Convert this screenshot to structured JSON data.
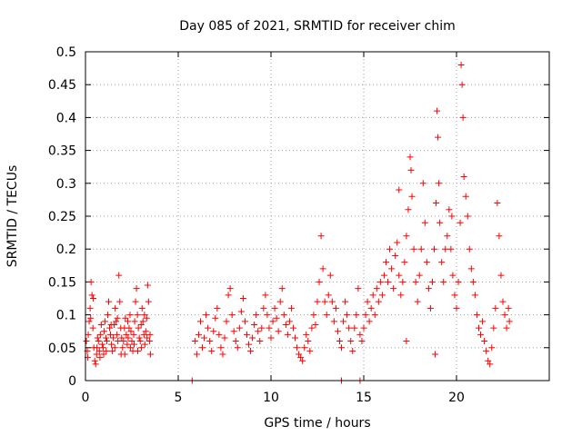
{
  "chart_data": {
    "type": "scatter",
    "title": "Day 085 of 2021, SRMTID for receiver chim",
    "xlabel": "GPS time / hours",
    "ylabel": "SRMTID / TECUs",
    "xlim": [
      0,
      25
    ],
    "ylim": [
      0,
      0.5
    ],
    "x_ticks": [
      0,
      5,
      10,
      15,
      20
    ],
    "x_tick_labels": [
      "0",
      "5",
      "10",
      "15",
      "20"
    ],
    "y_ticks": [
      0,
      0.05,
      0.1,
      0.15,
      0.2,
      0.25,
      0.3,
      0.35,
      0.4,
      0.45,
      0.5
    ],
    "y_tick_labels": [
      "0",
      "0.05",
      "0.1",
      "0.15",
      "0.2",
      "0.25",
      "0.3",
      "0.35",
      "0.4",
      "0.45",
      "0.5"
    ],
    "grid": true,
    "marker": "+",
    "series": [
      {
        "name": "SRMTID",
        "color": "#ff0000",
        "points": [
          [
            0.05,
            0.06
          ],
          [
            0.1,
            0.045
          ],
          [
            0.15,
            0.07
          ],
          [
            0.2,
            0.09
          ],
          [
            0.25,
            0.11
          ],
          [
            0.3,
            0.15
          ],
          [
            0.35,
            0.13
          ],
          [
            0.4,
            0.08
          ],
          [
            0.45,
            0.05
          ],
          [
            0.5,
            0.03
          ],
          [
            0.55,
            0.025
          ],
          [
            0.6,
            0.04
          ],
          [
            0.65,
            0.065
          ],
          [
            0.7,
            0.06
          ],
          [
            0.75,
            0.045
          ],
          [
            0.8,
            0.07
          ],
          [
            0.85,
            0.085
          ],
          [
            0.9,
            0.055
          ],
          [
            0.95,
            0.05
          ],
          [
            1.0,
            0.075
          ],
          [
            1.05,
            0.09
          ],
          [
            1.1,
            0.065
          ],
          [
            1.15,
            0.06
          ],
          [
            1.2,
            0.1
          ],
          [
            1.25,
            0.12
          ],
          [
            1.3,
            0.08
          ],
          [
            1.35,
            0.07
          ],
          [
            1.4,
            0.055
          ],
          [
            1.45,
            0.045
          ],
          [
            1.5,
            0.065
          ],
          [
            1.55,
            0.085
          ],
          [
            1.6,
            0.11
          ],
          [
            1.65,
            0.09
          ],
          [
            1.7,
            0.07
          ],
          [
            1.75,
            0.06
          ],
          [
            1.8,
            0.16
          ],
          [
            1.85,
            0.12
          ],
          [
            1.9,
            0.08
          ],
          [
            1.95,
            0.065
          ],
          [
            2.0,
            0.05
          ],
          [
            2.05,
            0.06
          ],
          [
            2.1,
            0.08
          ],
          [
            2.15,
            0.095
          ],
          [
            2.2,
            0.07
          ],
          [
            2.25,
            0.055
          ],
          [
            2.3,
            0.065
          ],
          [
            2.35,
            0.08
          ],
          [
            2.4,
            0.1
          ],
          [
            2.45,
            0.075
          ],
          [
            2.5,
            0.06
          ],
          [
            2.55,
            0.045
          ],
          [
            2.6,
            0.07
          ],
          [
            2.65,
            0.09
          ],
          [
            2.7,
            0.12
          ],
          [
            2.75,
            0.14
          ],
          [
            2.8,
            0.1
          ],
          [
            2.85,
            0.08
          ],
          [
            2.9,
            0.065
          ],
          [
            2.95,
            0.06
          ],
          [
            3.0,
            0.085
          ],
          [
            3.05,
            0.11
          ],
          [
            3.1,
            0.09
          ],
          [
            3.15,
            0.07
          ],
          [
            3.2,
            0.055
          ],
          [
            3.25,
            0.075
          ],
          [
            3.3,
            0.095
          ],
          [
            3.35,
            0.145
          ],
          [
            3.4,
            0.12
          ],
          [
            3.45,
            0.06
          ],
          [
            3.5,
            0.04
          ],
          [
            0.12,
            0.035
          ],
          [
            0.28,
            0.095
          ],
          [
            0.42,
            0.125
          ],
          [
            0.62,
            0.05
          ],
          [
            0.78,
            0.035
          ],
          [
            0.98,
            0.04
          ],
          [
            1.12,
            0.045
          ],
          [
            1.38,
            0.085
          ],
          [
            1.58,
            0.05
          ],
          [
            1.72,
            0.095
          ],
          [
            1.92,
            0.04
          ],
          [
            2.12,
            0.04
          ],
          [
            2.28,
            0.09
          ],
          [
            2.42,
            0.05
          ],
          [
            2.62,
            0.055
          ],
          [
            2.82,
            0.045
          ],
          [
            3.02,
            0.05
          ],
          [
            3.18,
            0.1
          ],
          [
            3.32,
            0.065
          ],
          [
            3.48,
            0.07
          ],
          [
            5.75,
            0.0
          ],
          [
            13.8,
            0.0
          ],
          [
            14.8,
            0.0
          ],
          [
            5.9,
            0.06
          ],
          [
            6.0,
            0.04
          ],
          [
            6.1,
            0.07
          ],
          [
            6.2,
            0.09
          ],
          [
            6.3,
            0.05
          ],
          [
            6.4,
            0.065
          ],
          [
            6.5,
            0.1
          ],
          [
            6.6,
            0.08
          ],
          [
            6.7,
            0.06
          ],
          [
            6.8,
            0.045
          ],
          [
            6.9,
            0.075
          ],
          [
            7.0,
            0.095
          ],
          [
            7.1,
            0.11
          ],
          [
            7.2,
            0.07
          ],
          [
            7.3,
            0.05
          ],
          [
            7.4,
            0.04
          ],
          [
            7.5,
            0.065
          ],
          [
            7.6,
            0.09
          ],
          [
            7.7,
            0.13
          ],
          [
            7.8,
            0.14
          ],
          [
            7.9,
            0.1
          ],
          [
            8.0,
            0.075
          ],
          [
            8.1,
            0.06
          ],
          [
            8.2,
            0.05
          ],
          [
            8.3,
            0.08
          ],
          [
            8.4,
            0.105
          ],
          [
            8.5,
            0.125
          ],
          [
            8.6,
            0.09
          ],
          [
            8.7,
            0.07
          ],
          [
            8.8,
            0.055
          ],
          [
            8.9,
            0.045
          ],
          [
            9.0,
            0.065
          ],
          [
            9.1,
            0.085
          ],
          [
            9.2,
            0.1
          ],
          [
            9.3,
            0.075
          ],
          [
            9.4,
            0.06
          ],
          [
            9.5,
            0.08
          ],
          [
            9.6,
            0.11
          ],
          [
            9.7,
            0.13
          ],
          [
            9.8,
            0.1
          ],
          [
            9.9,
            0.08
          ],
          [
            10.0,
            0.065
          ],
          [
            10.1,
            0.09
          ],
          [
            10.2,
            0.11
          ],
          [
            10.3,
            0.095
          ],
          [
            10.4,
            0.075
          ],
          [
            10.5,
            0.12
          ],
          [
            10.6,
            0.14
          ],
          [
            10.7,
            0.1
          ],
          [
            10.8,
            0.085
          ],
          [
            10.9,
            0.07
          ],
          [
            11.0,
            0.09
          ],
          [
            11.1,
            0.11
          ],
          [
            11.2,
            0.08
          ],
          [
            11.3,
            0.065
          ],
          [
            11.4,
            0.05
          ],
          [
            11.5,
            0.04
          ],
          [
            11.6,
            0.035
          ],
          [
            11.7,
            0.03
          ],
          [
            11.8,
            0.05
          ],
          [
            11.9,
            0.07
          ],
          [
            12.0,
            0.06
          ],
          [
            12.1,
            0.045
          ],
          [
            12.2,
            0.08
          ],
          [
            12.3,
            0.1
          ],
          [
            12.4,
            0.085
          ],
          [
            12.5,
            0.12
          ],
          [
            12.6,
            0.15
          ],
          [
            12.7,
            0.22
          ],
          [
            12.8,
            0.17
          ],
          [
            12.9,
            0.12
          ],
          [
            13.0,
            0.1
          ],
          [
            13.1,
            0.13
          ],
          [
            13.2,
            0.16
          ],
          [
            13.3,
            0.12
          ],
          [
            13.4,
            0.09
          ],
          [
            13.5,
            0.11
          ],
          [
            13.6,
            0.075
          ],
          [
            13.7,
            0.06
          ],
          [
            13.8,
            0.05
          ],
          [
            13.9,
            0.09
          ],
          [
            14.0,
            0.12
          ],
          [
            14.1,
            0.1
          ],
          [
            14.2,
            0.08
          ],
          [
            14.3,
            0.06
          ],
          [
            14.4,
            0.045
          ],
          [
            14.5,
            0.08
          ],
          [
            14.6,
            0.1
          ],
          [
            14.7,
            0.14
          ],
          [
            14.8,
            0.07
          ],
          [
            14.9,
            0.06
          ],
          [
            15.0,
            0.08
          ],
          [
            15.1,
            0.1
          ],
          [
            15.2,
            0.12
          ],
          [
            15.3,
            0.09
          ],
          [
            15.4,
            0.11
          ],
          [
            15.5,
            0.13
          ],
          [
            15.6,
            0.1
          ],
          [
            15.7,
            0.14
          ],
          [
            15.8,
            0.12
          ],
          [
            15.9,
            0.15
          ],
          [
            16.0,
            0.13
          ],
          [
            16.1,
            0.16
          ],
          [
            16.2,
            0.18
          ],
          [
            16.3,
            0.15
          ],
          [
            16.4,
            0.2
          ],
          [
            16.5,
            0.17
          ],
          [
            16.6,
            0.14
          ],
          [
            16.7,
            0.19
          ],
          [
            16.8,
            0.21
          ],
          [
            16.9,
            0.16
          ],
          [
            17.0,
            0.13
          ],
          [
            17.1,
            0.15
          ],
          [
            17.2,
            0.18
          ],
          [
            17.3,
            0.22
          ],
          [
            17.4,
            0.26
          ],
          [
            17.5,
            0.34
          ],
          [
            17.55,
            0.32
          ],
          [
            17.6,
            0.28
          ],
          [
            17.7,
            0.2
          ],
          [
            17.8,
            0.15
          ],
          [
            17.9,
            0.12
          ],
          [
            18.0,
            0.16
          ],
          [
            18.1,
            0.2
          ],
          [
            18.2,
            0.3
          ],
          [
            18.3,
            0.24
          ],
          [
            18.4,
            0.18
          ],
          [
            18.5,
            0.14
          ],
          [
            18.6,
            0.11
          ],
          [
            18.7,
            0.15
          ],
          [
            18.8,
            0.2
          ],
          [
            18.9,
            0.27
          ],
          [
            18.95,
            0.41
          ],
          [
            19.0,
            0.37
          ],
          [
            19.05,
            0.3
          ],
          [
            19.1,
            0.24
          ],
          [
            19.2,
            0.18
          ],
          [
            19.3,
            0.15
          ],
          [
            19.4,
            0.2
          ],
          [
            19.5,
            0.22
          ],
          [
            19.6,
            0.26
          ],
          [
            19.7,
            0.2
          ],
          [
            19.8,
            0.16
          ],
          [
            19.9,
            0.13
          ],
          [
            20.0,
            0.11
          ],
          [
            20.1,
            0.15
          ],
          [
            20.2,
            0.24
          ],
          [
            20.25,
            0.48
          ],
          [
            20.3,
            0.45
          ],
          [
            20.35,
            0.4
          ],
          [
            20.4,
            0.31
          ],
          [
            20.5,
            0.28
          ],
          [
            20.6,
            0.25
          ],
          [
            20.7,
            0.2
          ],
          [
            20.8,
            0.17
          ],
          [
            20.9,
            0.15
          ],
          [
            21.0,
            0.13
          ],
          [
            21.1,
            0.1
          ],
          [
            21.2,
            0.08
          ],
          [
            21.3,
            0.07
          ],
          [
            21.4,
            0.09
          ],
          [
            21.5,
            0.06
          ],
          [
            21.6,
            0.045
          ],
          [
            21.7,
            0.03
          ],
          [
            21.8,
            0.025
          ],
          [
            21.9,
            0.05
          ],
          [
            22.0,
            0.08
          ],
          [
            22.1,
            0.11
          ],
          [
            22.2,
            0.27
          ],
          [
            22.3,
            0.22
          ],
          [
            22.4,
            0.16
          ],
          [
            22.5,
            0.12
          ],
          [
            22.6,
            0.1
          ],
          [
            22.7,
            0.08
          ],
          [
            22.8,
            0.11
          ],
          [
            22.85,
            0.09
          ],
          [
            18.85,
            0.04
          ],
          [
            17.3,
            0.06
          ],
          [
            16.9,
            0.29
          ],
          [
            19.75,
            0.25
          ]
        ]
      }
    ]
  }
}
